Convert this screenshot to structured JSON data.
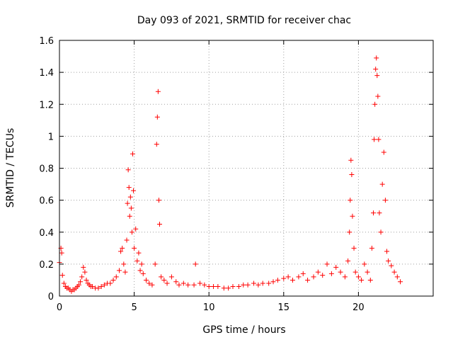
{
  "chart_data": {
    "type": "scatter",
    "title": "Day 093 of 2021, SRMTID for receiver chac",
    "xlabel": "GPS time / hours",
    "ylabel": "SRMTID / TECUs",
    "xlim": [
      0,
      25
    ],
    "ylim": [
      0,
      1.6
    ],
    "x_ticks": [
      0,
      5,
      10,
      15,
      20
    ],
    "x_tick_labels": [
      "0",
      "5",
      "10",
      "15",
      "20"
    ],
    "y_ticks": [
      0,
      0.2,
      0.4,
      0.6,
      0.8,
      1.0,
      1.2,
      1.4,
      1.6
    ],
    "y_tick_labels": [
      "0",
      "0.2",
      "0.4",
      "0.6",
      "0.8",
      "1",
      "1.2",
      "1.4",
      "1.6"
    ],
    "grid": true,
    "marker": "+",
    "color": "#ff0000",
    "series": [
      {
        "name": "SRMTID",
        "x": [
          0.0,
          0.1,
          0.15,
          0.2,
          0.3,
          0.4,
          0.5,
          0.6,
          0.7,
          0.8,
          0.9,
          1.0,
          1.1,
          1.2,
          1.3,
          1.4,
          1.5,
          1.6,
          1.7,
          1.8,
          1.9,
          2.0,
          2.1,
          2.2,
          2.4,
          2.6,
          2.8,
          3.0,
          3.2,
          3.4,
          3.6,
          3.8,
          4.0,
          4.1,
          4.2,
          4.3,
          4.4,
          4.5,
          4.55,
          4.6,
          4.65,
          4.7,
          4.75,
          4.8,
          4.85,
          4.9,
          4.95,
          5.0,
          5.1,
          5.2,
          5.3,
          5.4,
          5.5,
          5.6,
          5.8,
          6.0,
          6.2,
          6.4,
          6.5,
          6.55,
          6.6,
          6.65,
          6.7,
          6.8,
          7.0,
          7.2,
          7.5,
          7.8,
          8.0,
          8.3,
          8.6,
          9.0,
          9.1,
          9.4,
          9.7,
          10.0,
          10.3,
          10.6,
          11.0,
          11.3,
          11.6,
          12.0,
          12.3,
          12.6,
          13.0,
          13.3,
          13.6,
          14.0,
          14.3,
          14.6,
          15.0,
          15.3,
          15.6,
          16.0,
          16.3,
          16.6,
          17.0,
          17.3,
          17.6,
          17.9,
          18.2,
          18.5,
          18.8,
          19.1,
          19.3,
          19.4,
          19.45,
          19.5,
          19.55,
          19.6,
          19.7,
          19.8,
          20.0,
          20.2,
          20.4,
          20.6,
          20.8,
          20.9,
          21.0,
          21.05,
          21.1,
          21.15,
          21.2,
          21.25,
          21.3,
          21.35,
          21.4,
          21.5,
          21.6,
          21.7,
          21.8,
          21.9,
          22.0,
          22.2,
          22.4,
          22.6,
          22.8
        ],
        "y": [
          0.21,
          0.3,
          0.27,
          0.13,
          0.08,
          0.06,
          0.05,
          0.05,
          0.04,
          0.03,
          0.04,
          0.04,
          0.05,
          0.06,
          0.07,
          0.09,
          0.12,
          0.18,
          0.15,
          0.1,
          0.08,
          0.07,
          0.06,
          0.06,
          0.05,
          0.05,
          0.06,
          0.07,
          0.08,
          0.08,
          0.1,
          0.12,
          0.16,
          0.28,
          0.3,
          0.2,
          0.15,
          0.35,
          0.58,
          0.79,
          0.68,
          0.5,
          0.62,
          0.55,
          0.4,
          0.89,
          0.66,
          0.3,
          0.42,
          0.22,
          0.27,
          0.16,
          0.2,
          0.14,
          0.1,
          0.08,
          0.07,
          0.2,
          0.95,
          1.12,
          1.28,
          0.6,
          0.45,
          0.12,
          0.1,
          0.08,
          0.12,
          0.09,
          0.07,
          0.08,
          0.07,
          0.07,
          0.2,
          0.08,
          0.07,
          0.06,
          0.06,
          0.06,
          0.05,
          0.05,
          0.06,
          0.06,
          0.07,
          0.07,
          0.08,
          0.07,
          0.08,
          0.08,
          0.09,
          0.1,
          0.11,
          0.12,
          0.1,
          0.12,
          0.14,
          0.1,
          0.12,
          0.15,
          0.13,
          0.2,
          0.14,
          0.18,
          0.15,
          0.12,
          0.22,
          0.4,
          0.6,
          0.85,
          0.76,
          0.5,
          0.3,
          0.15,
          0.12,
          0.1,
          0.2,
          0.15,
          0.1,
          0.3,
          0.52,
          0.98,
          1.2,
          1.42,
          1.49,
          1.38,
          1.25,
          0.98,
          0.52,
          0.4,
          0.7,
          0.9,
          0.6,
          0.28,
          0.22,
          0.19,
          0.15,
          0.12,
          0.09
        ]
      }
    ]
  }
}
